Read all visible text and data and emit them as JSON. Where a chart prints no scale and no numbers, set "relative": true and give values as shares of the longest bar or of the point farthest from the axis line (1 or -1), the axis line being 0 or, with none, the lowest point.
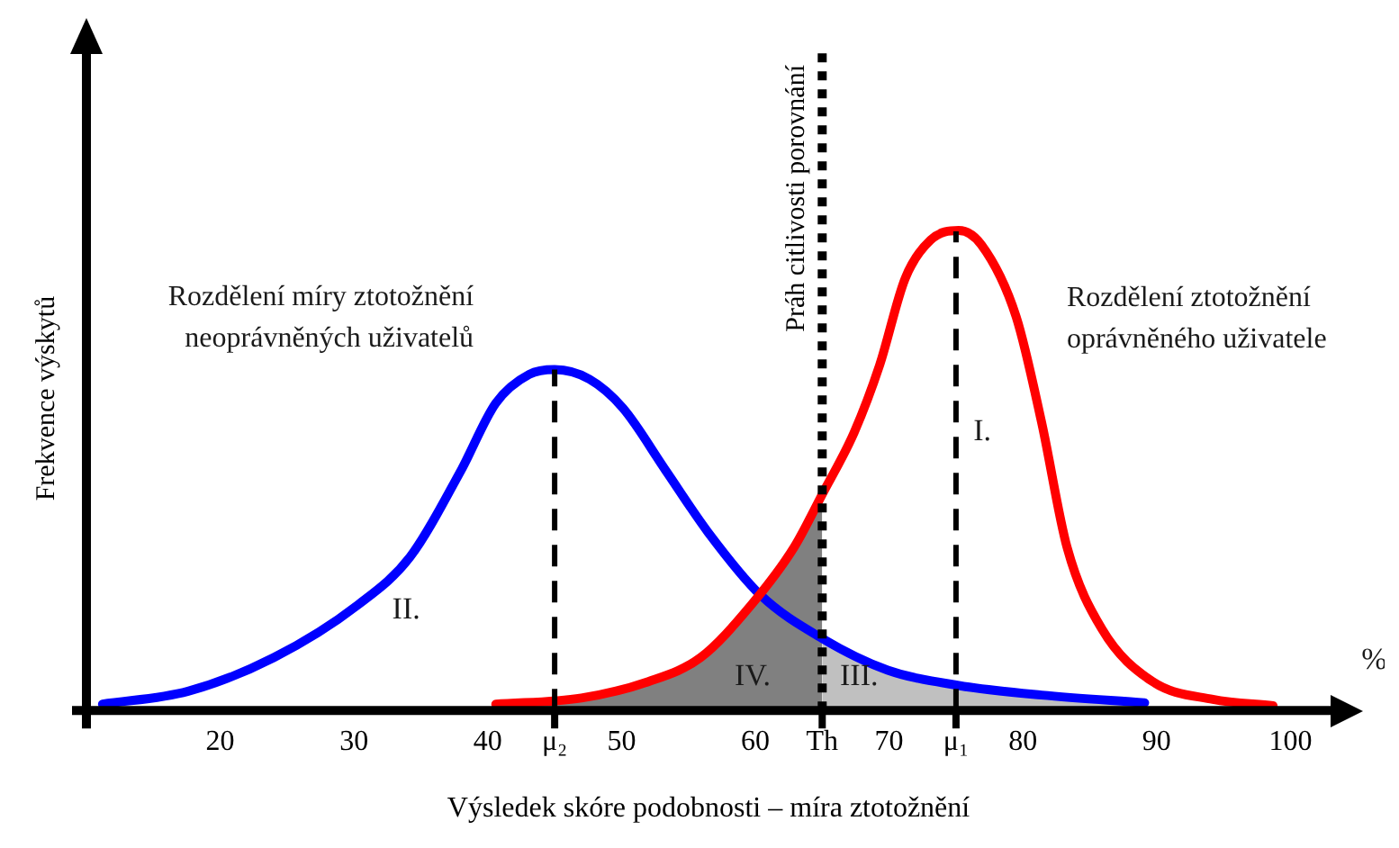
{
  "chart_data": {
    "type": "line",
    "relative": true,
    "xlabel": "Výsledek skóre podobnosti – míra ztotožnění",
    "ylabel": "Frekvence výskytů",
    "xlim": [
      10,
      103
    ],
    "xticks": [
      20,
      30,
      40,
      {
        "value": 45,
        "label": "μ₂"
      },
      50,
      60,
      {
        "value": 65,
        "label": "Th"
      },
      70,
      {
        "value": 75,
        "label": "μ₁"
      },
      80,
      90,
      100
    ],
    "grid": false,
    "legend": false,
    "marker": "none",
    "series": [
      {
        "type": "area",
        "color": "#808080",
        "x": [
          40.6,
          47,
          52,
          55.9,
          59.7,
          62.9,
          65
        ],
        "values": [
          0.013,
          0.026,
          0.06,
          0.11,
          0.22,
          0.34,
          0.45
        ]
      },
      {
        "type": "area",
        "color": "#c0c0c0",
        "x": [
          65,
          69.9,
          75.2,
          81.4,
          89.1
        ],
        "values": [
          0.15,
          0.084,
          0.052,
          0.032,
          0.016
        ]
      },
      {
        "type": "line",
        "name": "Rozdělení míry ztotožnění\nneoprávněných uživatelů",
        "color": "#0000ff",
        "x": [
          11.2,
          17.6,
          24,
          30.3,
          34.2,
          38,
          40.6,
          43.1,
          45,
          47.6,
          50.1,
          53.3,
          56.5,
          60.4,
          65,
          69.9,
          75.2,
          81.4,
          89.1
        ],
        "values": [
          0.013,
          0.04,
          0.11,
          0.22,
          0.32,
          0.5,
          0.64,
          0.7,
          0.71,
          0.69,
          0.63,
          0.5,
          0.37,
          0.24,
          0.15,
          0.084,
          0.052,
          0.032,
          0.016
        ]
      },
      {
        "type": "line",
        "name": "Rozdělení ztotožnění\noprávněného uživatele",
        "color": "#ff0000",
        "x": [
          40.6,
          47,
          52,
          55.9,
          59.7,
          62.9,
          65,
          67.4,
          69.3,
          71.2,
          73.1,
          75.2,
          76.9,
          79.5,
          81.4,
          83.3,
          85.9,
          89.7,
          94.2,
          98.7
        ],
        "values": [
          0.013,
          0.026,
          0.06,
          0.11,
          0.22,
          0.34,
          0.45,
          0.58,
          0.72,
          0.9,
          0.98,
          1,
          0.97,
          0.82,
          0.6,
          0.34,
          0.17,
          0.06,
          0.023,
          0.01
        ]
      }
    ],
    "ref_lines": [
      {
        "axis": "x",
        "value": 45,
        "color": "#000000",
        "line_style": "dashed"
      },
      {
        "axis": "x",
        "value": 75,
        "color": "#000000",
        "line_style": "dashed"
      },
      {
        "axis": "x",
        "value": 65,
        "color": "#000000",
        "line_style": "dotted",
        "label": "Práh citlivosti porovnání"
      }
    ],
    "annotations": [
      "I.",
      "II.",
      "III.",
      "IV.",
      "%"
    ]
  }
}
